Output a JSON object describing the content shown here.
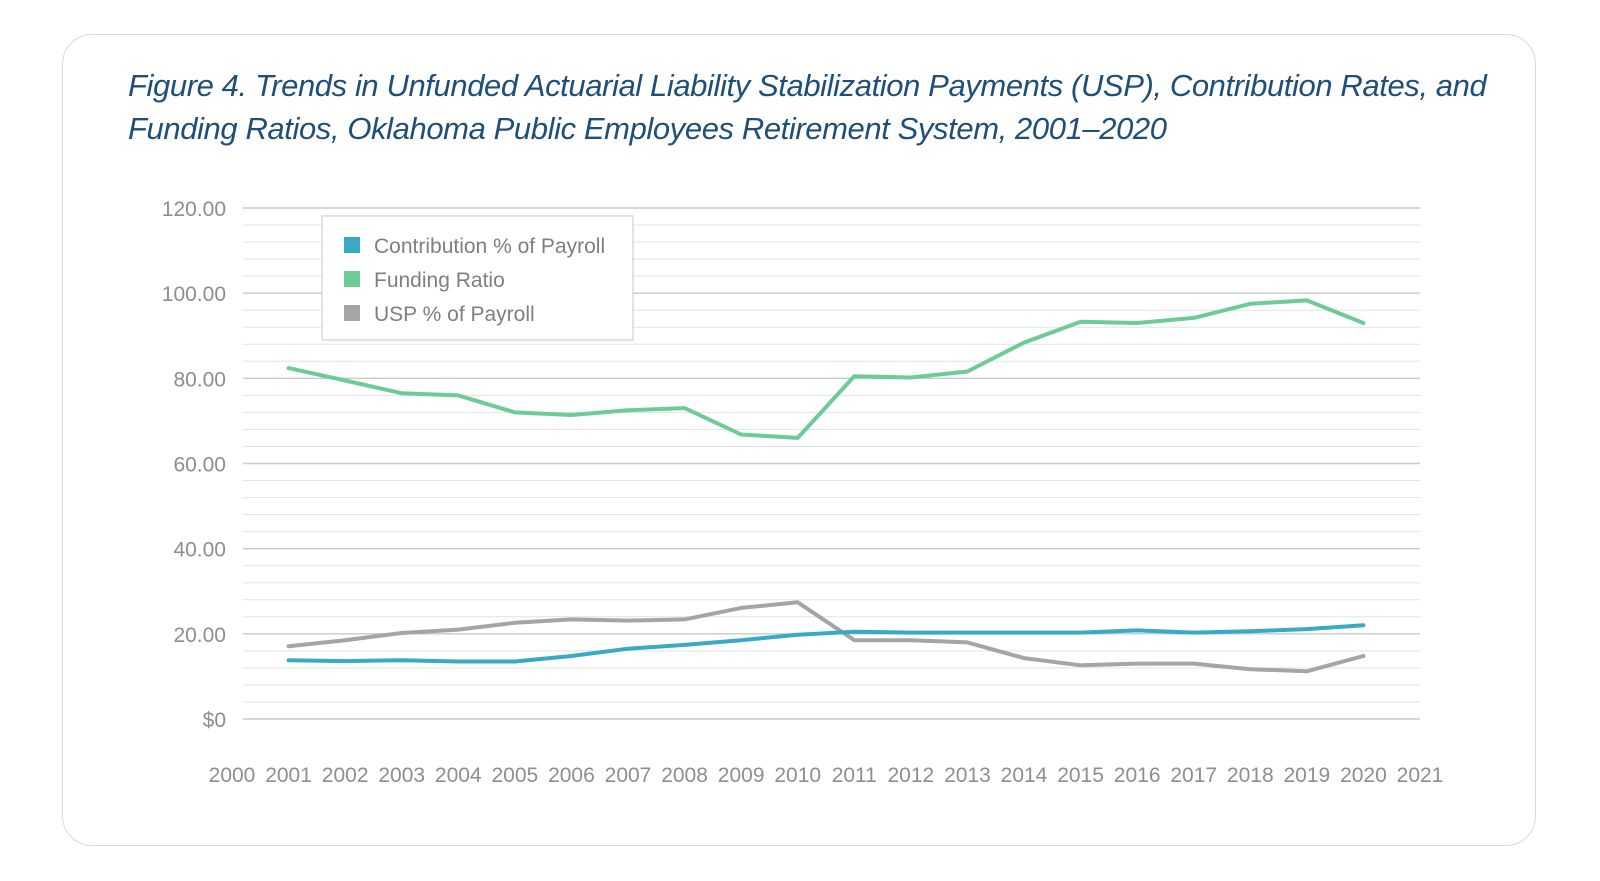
{
  "title": "Figure 4. Trends in Unfunded Actuarial Liability Stabilization Payments (USP), Contribution Rates, and Funding Ratios, Oklahoma Public Employees Retirement System, 2001–2020",
  "chart_data": {
    "type": "line",
    "title": "Figure 4. Trends in Unfunded Actuarial Liability Stabilization Payments (USP), Contribution Rates, and Funding Ratios, Oklahoma Public Employees Retirement System, 2001–2020",
    "xlabel": "",
    "ylabel": "",
    "xlim": [
      2000,
      2021
    ],
    "ylim": [
      0,
      120
    ],
    "x_ticks": [
      2000,
      2001,
      2002,
      2003,
      2004,
      2005,
      2006,
      2007,
      2008,
      2009,
      2010,
      2011,
      2012,
      2013,
      2014,
      2015,
      2016,
      2017,
      2018,
      2019,
      2020,
      2021
    ],
    "y_ticks": [
      0,
      20,
      40,
      60,
      80,
      100,
      120
    ],
    "y_tick_labels": [
      "$0",
      "20.00",
      "40.00",
      "60.00",
      "80.00",
      "100.00",
      "120.00"
    ],
    "grid": true,
    "legend_position": "top-left",
    "x": [
      2001,
      2002,
      2003,
      2004,
      2005,
      2006,
      2007,
      2008,
      2009,
      2010,
      2011,
      2012,
      2013,
      2014,
      2015,
      2016,
      2017,
      2018,
      2019,
      2020
    ],
    "series": [
      {
        "name": "Contribution % of Payroll",
        "color": "#3aa9c6",
        "values": [
          13.8,
          13.6,
          13.8,
          13.5,
          13.5,
          14.8,
          16.5,
          17.4,
          18.5,
          19.8,
          20.5,
          20.3,
          20.3,
          20.3,
          20.3,
          20.8,
          20.3,
          20.6,
          21.1,
          22.0
        ]
      },
      {
        "name": "Funding Ratio",
        "color": "#6dcc95",
        "values": [
          82.4,
          79.5,
          76.5,
          76.0,
          72.0,
          71.4,
          72.5,
          73.0,
          66.8,
          66.0,
          80.5,
          80.2,
          81.6,
          88.4,
          93.3,
          93.0,
          94.2,
          97.5,
          98.3,
          93.0
        ]
      },
      {
        "name": "USP % of Payroll",
        "color": "#a3a5a9",
        "values": [
          17.1,
          18.5,
          20.2,
          21.0,
          22.6,
          23.4,
          23.1,
          23.4,
          26.1,
          27.4,
          18.5,
          18.5,
          18.0,
          14.3,
          12.6,
          13.0,
          13.0,
          11.7,
          11.2,
          14.8
        ]
      }
    ]
  }
}
